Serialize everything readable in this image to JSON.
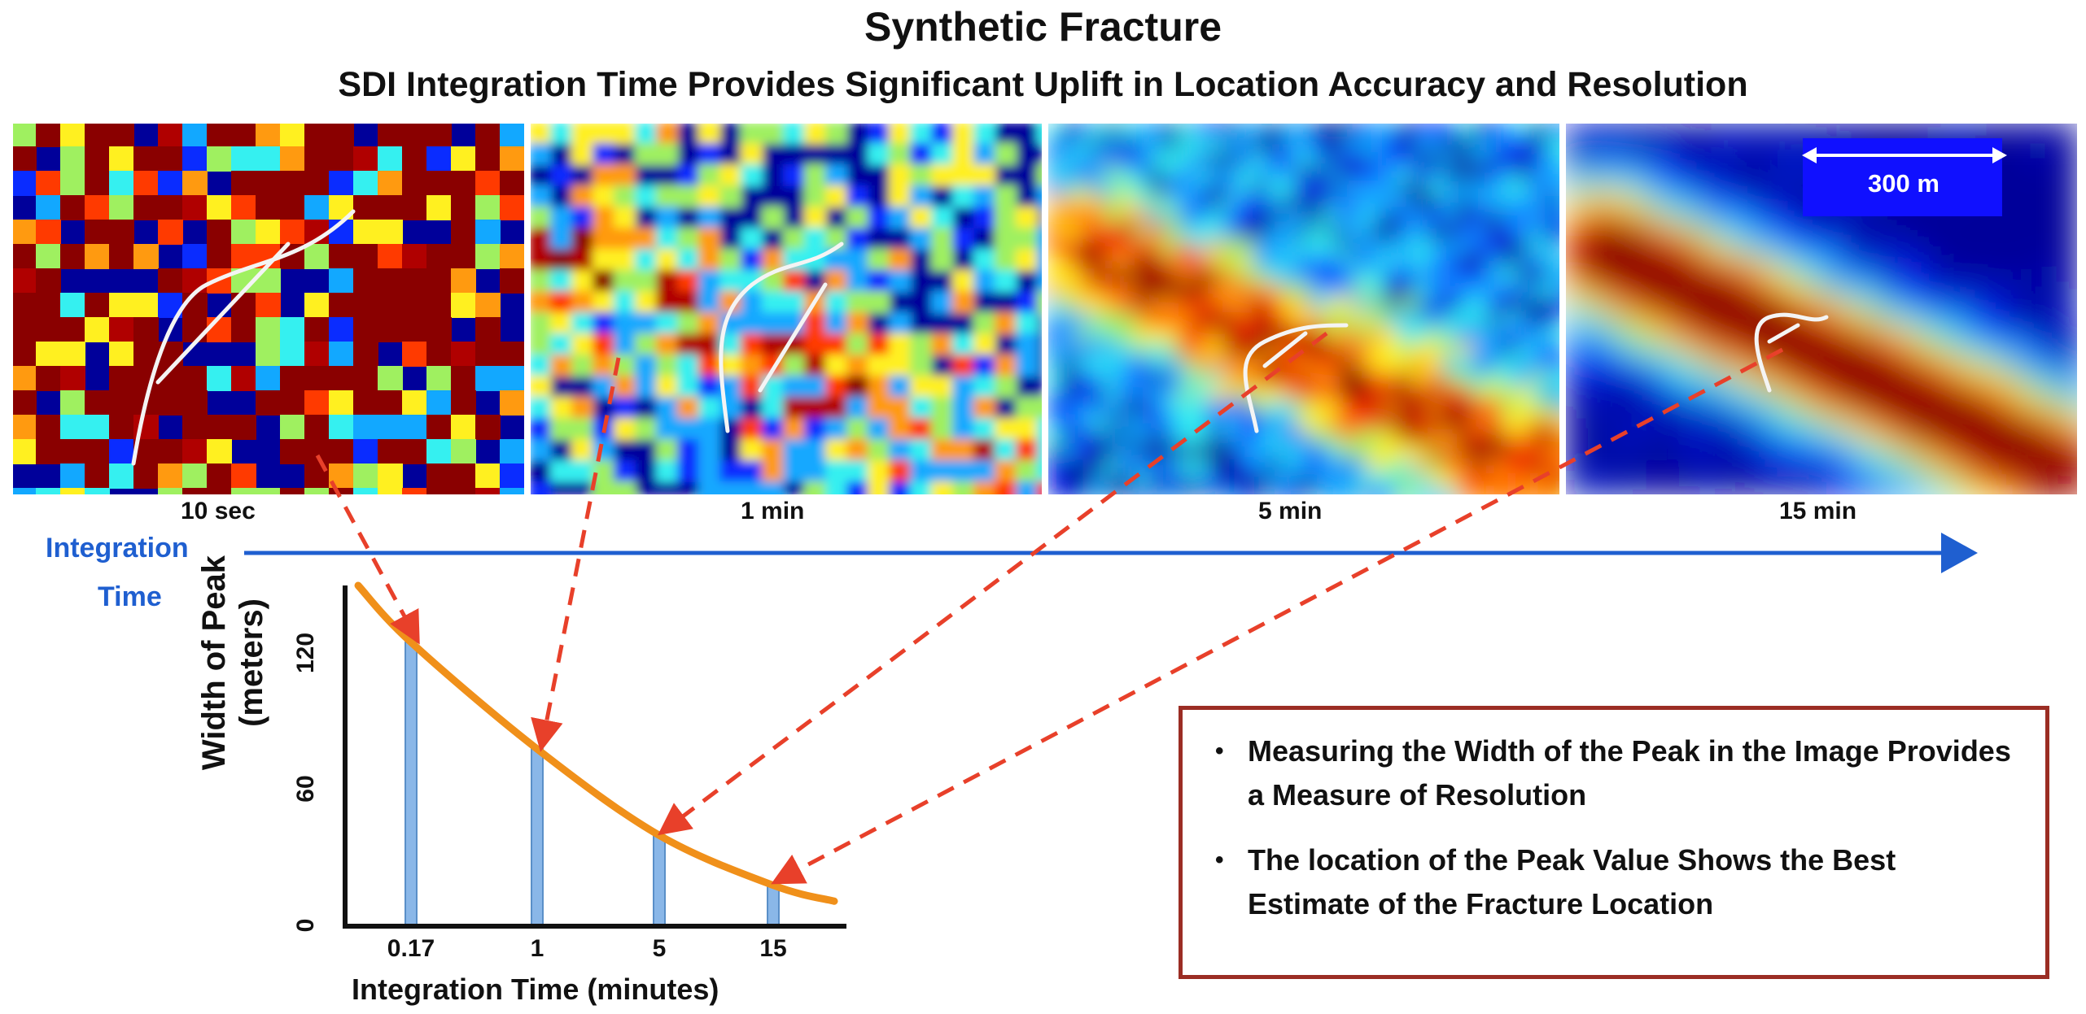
{
  "header": {
    "title": "Synthetic Fracture",
    "subtitle": "SDI Integration Time Provides Significant Uplift in Location Accuracy and Resolution"
  },
  "panels": [
    {
      "label": "10 sec"
    },
    {
      "label": "1 min"
    },
    {
      "label": "5 min"
    },
    {
      "label": "15 min"
    }
  ],
  "scale_bar": {
    "label": "300 m"
  },
  "integration_arrow": {
    "line1": "Integration",
    "line2": "Time"
  },
  "chart_data": {
    "type": "line",
    "x_categories": [
      "0.17",
      "1",
      "5",
      "15"
    ],
    "series": [
      {
        "values": [
          125,
          78,
          40,
          18
        ]
      }
    ],
    "xlabel": "Integration Time (minutes)",
    "ylabel": "Width of Peak",
    "ylabel_unit": "(meters)",
    "yticks": [
      "0",
      "60",
      "120"
    ],
    "ylim": [
      0,
      150
    ],
    "grid": false
  },
  "notes": [
    "Measuring the Width of the Peak in the Image Provides a Measure of Resolution",
    " The location of the Peak Value Shows the Best Estimate of the Fracture Location"
  ],
  "colors": {
    "curve": "#f0901a",
    "bars": "#8ab7e8",
    "dashed_arrows": "#e8402a",
    "axis_arrow": "#1f5fd0",
    "note_border": "#9b2d24"
  }
}
